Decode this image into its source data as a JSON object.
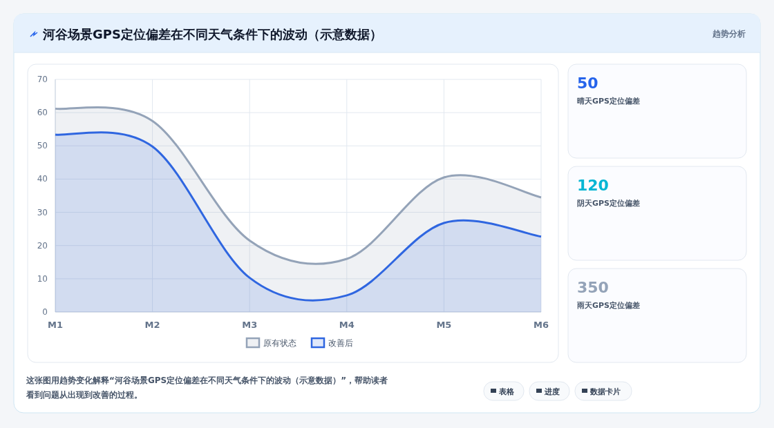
{
  "chart_data": [
    {
      "type": "area",
      "title": "河谷场景GPS定位偏差在不同天气条件下的波动（示意数据）",
      "categories": [
        "M1",
        "M2",
        "M3",
        "M4",
        "M5",
        "M6"
      ],
      "series": [
        {
          "name": "原有状态",
          "color": "#94a3b8",
          "values": [
            61.2,
            57.5,
            21.5,
            16,
            40.5,
            34.5
          ]
        },
        {
          "name": "改善后",
          "color": "#2f66e0",
          "values": [
            53.4,
            49.8,
            10.3,
            5,
            26.8,
            22.7
          ]
        }
      ],
      "ylim": [
        0,
        70
      ],
      "yticks": [
        0,
        10,
        20,
        30,
        40,
        50,
        60,
        70
      ],
      "grid": true,
      "legend": "bottom",
      "annotations": [
        "趋势分析",
        "这张图用趋势变化解释“河谷场景GPS定位偏差在不同天气条件下的波动（示意数据）”，帮助读者看到问题从出现到改善的过程。",
        "表格",
        "进度",
        "数据卡片"
      ]
    },
    {
      "type": "other",
      "annotations": [
        "50",
        "晴天GPS定位偏差",
        "120",
        "阴天GPS定位偏差",
        "350",
        "雨天GPS定位偏差"
      ]
    }
  ]
}
